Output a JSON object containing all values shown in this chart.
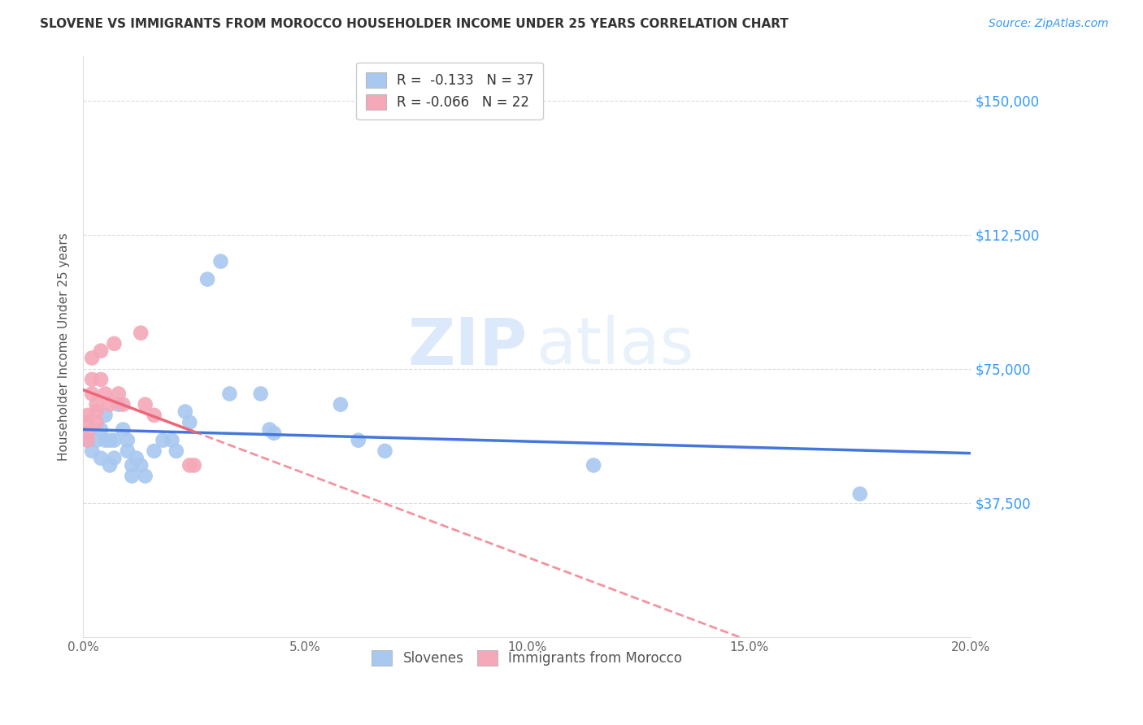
{
  "title": "SLOVENE VS IMMIGRANTS FROM MOROCCO HOUSEHOLDER INCOME UNDER 25 YEARS CORRELATION CHART",
  "source": "Source: ZipAtlas.com",
  "ylabel": "Householder Income Under 25 years",
  "yticks": [
    0,
    37500,
    75000,
    112500,
    150000
  ],
  "ytick_labels": [
    "",
    "$37,500",
    "$75,000",
    "$112,500",
    "$150,000"
  ],
  "xlim": [
    0.0,
    0.2
  ],
  "ylim": [
    0,
    162500
  ],
  "legend_blue_r": "R =  -0.133",
  "legend_blue_n": "N = 37",
  "legend_pink_r": "R = -0.066",
  "legend_pink_n": "N = 22",
  "legend_label_blue": "Slovenes",
  "legend_label_pink": "Immigrants from Morocco",
  "blue_color": "#A8C8F0",
  "pink_color": "#F4A8B8",
  "line_blue": "#4477DD",
  "line_pink": "#EE6677",
  "watermark_zip": "ZIP",
  "watermark_atlas": "atlas",
  "blue_points": [
    [
      0.001,
      55000
    ],
    [
      0.002,
      52000
    ],
    [
      0.003,
      55000
    ],
    [
      0.004,
      58000
    ],
    [
      0.004,
      50000
    ],
    [
      0.005,
      62000
    ],
    [
      0.005,
      55000
    ],
    [
      0.006,
      55000
    ],
    [
      0.006,
      48000
    ],
    [
      0.007,
      55000
    ],
    [
      0.007,
      50000
    ],
    [
      0.008,
      65000
    ],
    [
      0.009,
      58000
    ],
    [
      0.01,
      55000
    ],
    [
      0.01,
      52000
    ],
    [
      0.011,
      48000
    ],
    [
      0.011,
      45000
    ],
    [
      0.012,
      50000
    ],
    [
      0.013,
      48000
    ],
    [
      0.014,
      45000
    ],
    [
      0.016,
      52000
    ],
    [
      0.018,
      55000
    ],
    [
      0.02,
      55000
    ],
    [
      0.021,
      52000
    ],
    [
      0.023,
      63000
    ],
    [
      0.024,
      60000
    ],
    [
      0.028,
      100000
    ],
    [
      0.031,
      105000
    ],
    [
      0.033,
      68000
    ],
    [
      0.04,
      68000
    ],
    [
      0.042,
      58000
    ],
    [
      0.043,
      57000
    ],
    [
      0.058,
      65000
    ],
    [
      0.062,
      55000
    ],
    [
      0.068,
      52000
    ],
    [
      0.115,
      48000
    ],
    [
      0.175,
      40000
    ]
  ],
  "pink_points": [
    [
      0.001,
      62000
    ],
    [
      0.001,
      60000
    ],
    [
      0.001,
      57000
    ],
    [
      0.001,
      55000
    ],
    [
      0.002,
      78000
    ],
    [
      0.002,
      72000
    ],
    [
      0.002,
      68000
    ],
    [
      0.003,
      65000
    ],
    [
      0.003,
      63000
    ],
    [
      0.003,
      60000
    ],
    [
      0.004,
      80000
    ],
    [
      0.004,
      72000
    ],
    [
      0.005,
      68000
    ],
    [
      0.006,
      65000
    ],
    [
      0.007,
      82000
    ],
    [
      0.008,
      68000
    ],
    [
      0.009,
      65000
    ],
    [
      0.013,
      85000
    ],
    [
      0.014,
      65000
    ],
    [
      0.016,
      62000
    ],
    [
      0.024,
      48000
    ],
    [
      0.025,
      48000
    ]
  ]
}
